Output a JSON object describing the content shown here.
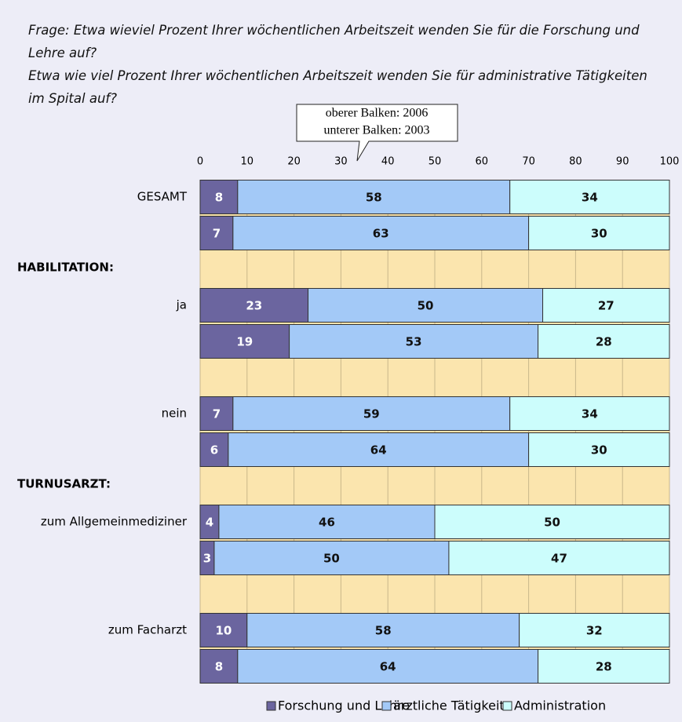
{
  "chart_data": {
    "type": "stacked_bar_horizontal",
    "title": [
      "Frage: Etwa wieviel Prozent Ihrer wöchentlichen Arbeitszeit wenden Sie für die Forschung und Lehre auf?",
      "Etwa wie viel Prozent Ihrer wöchentlichen Arbeitszeit wenden Sie für administrative Tätigkeiten im Spital auf?"
    ],
    "annotation": [
      "oberer Balken: 2006",
      "unterer Balken: 2003"
    ],
    "categories": [
      "GESAMT",
      null,
      "HABILITATION:",
      "ja",
      null,
      null,
      "nein",
      null,
      "TURNUSARZT:",
      "zum Allgemeinmediziner",
      null,
      null,
      "zum Facharzt",
      null
    ],
    "series": [
      {
        "name": "Forschung und Lehre",
        "color": "#6b659f",
        "values": [
          8,
          7,
          null,
          23,
          19,
          null,
          7,
          6,
          null,
          4,
          3,
          null,
          10,
          8
        ]
      },
      {
        "name": "ärztliche Tätigkeit",
        "color": "#a3c9f7",
        "values": [
          58,
          63,
          null,
          50,
          53,
          null,
          59,
          64,
          null,
          46,
          50,
          null,
          58,
          64
        ]
      },
      {
        "name": "Administration",
        "color": "#ccfdfc",
        "values": [
          34,
          30,
          null,
          27,
          28,
          null,
          34,
          30,
          null,
          50,
          47,
          null,
          32,
          28
        ]
      }
    ],
    "xlim": [
      0,
      100
    ],
    "xticks": [
      0,
      10,
      20,
      30,
      40,
      50,
      60,
      70,
      80,
      90,
      100
    ],
    "grid": true,
    "legend": "bottom"
  }
}
